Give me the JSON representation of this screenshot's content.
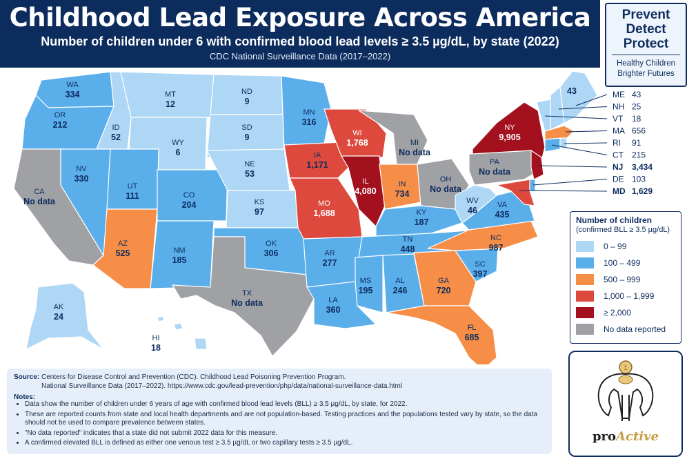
{
  "header": {
    "title": "Childhood Lead Exposure Across America",
    "subtitle": "Number of children under 6 with confirmed blood lead levels ≥ 3.5 µg/dL, by state (2022)",
    "source_line": "CDC National Surveillance Data (2017–2022)"
  },
  "badge": {
    "words": [
      "Prevent",
      "Detect",
      "Protect"
    ],
    "tagline_1": "Healthy Children",
    "tagline_2": "Brighter Futures"
  },
  "legend": {
    "title": "Number of children",
    "subtitle": "(confirmed BLL ≥ 3.5 µg/dL)",
    "items": [
      {
        "label": "0 – 99",
        "color": "#aed6f5"
      },
      {
        "label": "100 – 499",
        "color": "#5aaeea"
      },
      {
        "label": "500 – 999",
        "color": "#f68e47"
      },
      {
        "label": "1,000 – 1,999",
        "color": "#dd4a3d"
      },
      {
        "label": "≥ 2,000",
        "color": "#a3111e"
      },
      {
        "label": "No data reported",
        "color": "#9fa1a4"
      }
    ]
  },
  "states": {
    "WA": {
      "abbr": "WA",
      "value": "334"
    },
    "OR": {
      "abbr": "OR",
      "value": "212"
    },
    "CA": {
      "abbr": "CA",
      "value": "No data"
    },
    "ID": {
      "abbr": "ID",
      "value": "52"
    },
    "NV": {
      "abbr": "NV",
      "value": "330"
    },
    "MT": {
      "abbr": "MT",
      "value": "12"
    },
    "WY": {
      "abbr": "WY",
      "value": "6"
    },
    "UT": {
      "abbr": "UT",
      "value": "111"
    },
    "AZ": {
      "abbr": "AZ",
      "value": "525"
    },
    "CO": {
      "abbr": "CO",
      "value": "204"
    },
    "NM": {
      "abbr": "NM",
      "value": "185"
    },
    "ND": {
      "abbr": "ND",
      "value": "9"
    },
    "SD": {
      "abbr": "SD",
      "value": "9"
    },
    "NE": {
      "abbr": "NE",
      "value": "53"
    },
    "KS": {
      "abbr": "KS",
      "value": "97"
    },
    "OK": {
      "abbr": "OK",
      "value": "306"
    },
    "TX": {
      "abbr": "TX",
      "value": "No data"
    },
    "MN": {
      "abbr": "MN",
      "value": "316"
    },
    "IA": {
      "abbr": "IA",
      "value": "1,171"
    },
    "MO": {
      "abbr": "MO",
      "value": "1,688"
    },
    "AR": {
      "abbr": "AR",
      "value": "277"
    },
    "LA": {
      "abbr": "LA",
      "value": "360"
    },
    "WI": {
      "abbr": "WI",
      "value": "1,768"
    },
    "IL": {
      "abbr": "IL",
      "value": "4,080"
    },
    "MI": {
      "abbr": "MI",
      "value": "No data"
    },
    "IN": {
      "abbr": "IN",
      "value": "734"
    },
    "OH": {
      "abbr": "OH",
      "value": "No data"
    },
    "KY": {
      "abbr": "KY",
      "value": "187"
    },
    "TN": {
      "abbr": "TN",
      "value": "448"
    },
    "MS": {
      "abbr": "MS",
      "value": "195"
    },
    "AL": {
      "abbr": "AL",
      "value": "246"
    },
    "GA": {
      "abbr": "GA",
      "value": "720"
    },
    "FL": {
      "abbr": "FL",
      "value": "685"
    },
    "SC": {
      "abbr": "SC",
      "value": "397"
    },
    "NC": {
      "abbr": "NC",
      "value": "987"
    },
    "VA": {
      "abbr": "VA",
      "value": "435"
    },
    "WV": {
      "abbr": "WV",
      "value": "46"
    },
    "PA": {
      "abbr": "PA",
      "value": "No data"
    },
    "NY": {
      "abbr": "NY",
      "value": "9,905"
    },
    "ME": {
      "abbr": "ME",
      "value": "43"
    },
    "AK": {
      "abbr": "AK",
      "value": "24"
    },
    "HI": {
      "abbr": "HI",
      "value": "18"
    }
  },
  "northeast_callouts": [
    {
      "abbr": "ME",
      "value": "43",
      "bold": false
    },
    {
      "abbr": "NH",
      "value": "25",
      "bold": false
    },
    {
      "abbr": "VT",
      "value": "18",
      "bold": false
    },
    {
      "abbr": "MA",
      "value": "656",
      "bold": false
    },
    {
      "abbr": "RI",
      "value": "91",
      "bold": false
    },
    {
      "abbr": "CT",
      "value": "215",
      "bold": false
    },
    {
      "abbr": "NJ",
      "value": "3,434",
      "bold": true
    },
    {
      "abbr": "DE",
      "value": "103",
      "bold": false
    },
    {
      "abbr": "MD",
      "value": "1,629",
      "bold": true
    }
  ],
  "notes": {
    "source_label": "Source:",
    "source_line_1": "Centers for Disease Control and Prevention (CDC). Childhood Lead Poisoning Prevention Program.",
    "source_line_2": "National Surveillance Data (2017–2022). https://www.cdc.gov/lead-prevention/php/data/national-surveillance-data.html",
    "notes_label": "Notes:",
    "bullets": [
      "Data show the number of children under 6 years of age with confirmed blood lead levels (BLL) ≥ 3.5 µg/dL, by state, for 2022.",
      "These are reported counts from state and local health departments and are not population-based. Testing practices and the populations tested vary by state, so the data should not be used to compare prevalence between states.",
      "\"No data reported\" indicates that a state did not submit 2022 data for this measure.",
      "A confirmed elevated BLL is defined as either one venous test ≥ 3.5 µg/dL or two capillary tests ≥ 3.5 µg/dL."
    ]
  },
  "logo": {
    "pro": "pro",
    "active": "Active"
  }
}
